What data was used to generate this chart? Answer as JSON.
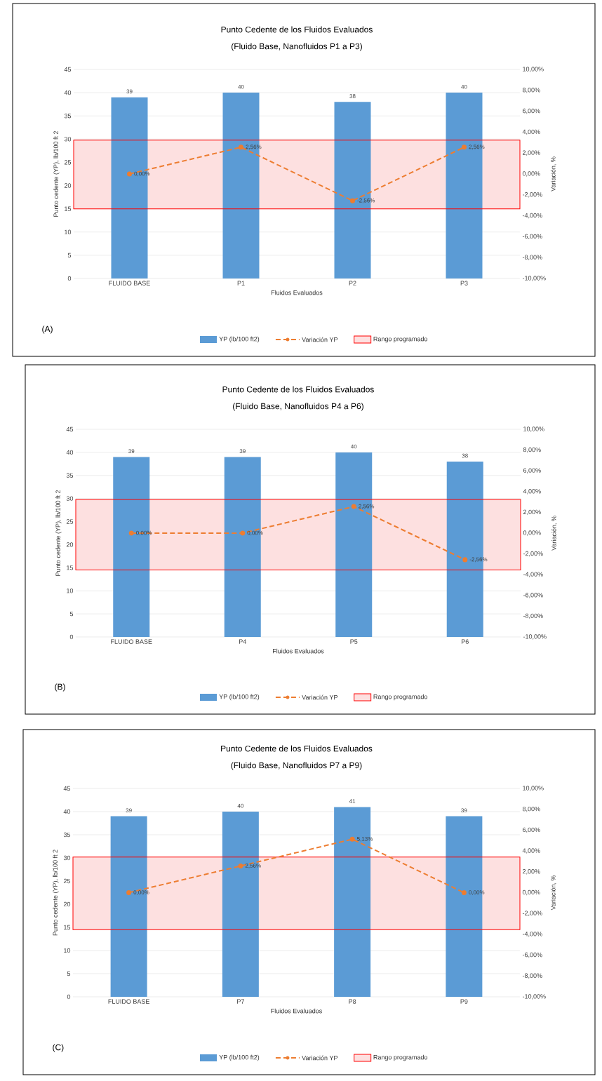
{
  "chart_data": [
    {
      "type": "bar",
      "title": "Punto Cedente de los Fluidos Evaluados",
      "subtitle": "(Fluido Base, Nanofluidos P1 a P3)",
      "xlabel": "Fluidos Evaluados",
      "ylabel": "Punto cedente (YP), lb/100 ft 2",
      "y2label": "Variación, %",
      "categories": [
        "FLUIDO BASE",
        "P1",
        "P2",
        "P3"
      ],
      "series": [
        {
          "name": "YP (lb/100 ft2)",
          "color": "#5b9bd5",
          "values": [
            39,
            40,
            38,
            40
          ],
          "value_labels": [
            "39",
            "40",
            "38",
            "40"
          ]
        },
        {
          "name": "Variación YP",
          "type": "line",
          "axis": "y2",
          "color": "#ed7d31",
          "marker": "circle",
          "line_style": "dashed",
          "values": [
            0,
            2.56,
            -2.56,
            2.56
          ],
          "value_labels": [
            "0,00%",
            "2,56%",
            "-2,56%",
            "2,56%"
          ]
        }
      ],
      "bands": [
        {
          "axis": "y",
          "from": 15,
          "to": 29.8,
          "label": "Rango programado",
          "color": "#fde0e0"
        }
      ],
      "ylim": [
        0,
        45
      ],
      "yticks": [
        0,
        5,
        10,
        15,
        20,
        25,
        30,
        35,
        40,
        45
      ],
      "y2lim": [
        -10,
        10
      ],
      "y2ticks": [
        {
          "value": -10,
          "label": "-10,00%"
        },
        {
          "value": -8,
          "label": "-8,00%"
        },
        {
          "value": -6,
          "label": "-6,00%"
        },
        {
          "value": -4,
          "label": "-4,00%"
        },
        {
          "value": -2,
          "label": "-2,00%"
        },
        {
          "value": 0,
          "label": "0,00%"
        },
        {
          "value": 2,
          "label": "2,00%"
        },
        {
          "value": 4,
          "label": "4,00%"
        },
        {
          "value": 6,
          "label": "6,00%"
        },
        {
          "value": 8,
          "label": "8,00%"
        },
        {
          "value": 10,
          "label": "10,00%"
        }
      ],
      "grid": "y",
      "legend": "bottom",
      "annotations": [
        "(A)"
      ]
    },
    {
      "type": "bar",
      "title": "Punto Cedente de los Fluidos Evaluados",
      "subtitle": "(Fluido Base, Nanofluidos P4 a P6)",
      "xlabel": "Fluidos Evaluados",
      "ylabel": "Punto cedente (YP), lb/100 ft 2",
      "y2label": "Variación, %",
      "categories": [
        "FLUIDO BASE",
        "P4",
        "P5",
        "P6"
      ],
      "series": [
        {
          "name": "YP (lb/100 ft2)",
          "color": "#5b9bd5",
          "values": [
            39,
            39,
            40,
            38
          ],
          "value_labels": [
            "39",
            "39",
            "40",
            "38"
          ]
        },
        {
          "name": "Variación YP",
          "type": "line",
          "axis": "y2",
          "color": "#ed7d31",
          "marker": "circle",
          "line_style": "dashed",
          "values": [
            0,
            0,
            2.56,
            -2.56
          ],
          "value_labels": [
            "0,00%",
            "0,00%",
            "2,56%",
            "-2,56%"
          ]
        }
      ],
      "bands": [
        {
          "axis": "y",
          "from": 14.5,
          "to": 29.8,
          "label": "Rango programado",
          "color": "#fde0e0"
        }
      ],
      "ylim": [
        0,
        45
      ],
      "yticks": [
        0,
        5,
        10,
        15,
        20,
        25,
        30,
        35,
        40,
        45
      ],
      "y2lim": [
        -10,
        10
      ],
      "y2ticks": [
        {
          "value": -10,
          "label": "-10,00%"
        },
        {
          "value": -8,
          "label": "-8,00%"
        },
        {
          "value": -6,
          "label": "-6,00%"
        },
        {
          "value": -4,
          "label": "-4,00%"
        },
        {
          "value": -2,
          "label": "-2,00%"
        },
        {
          "value": 0,
          "label": "0,00%"
        },
        {
          "value": 2,
          "label": "2,00%"
        },
        {
          "value": 4,
          "label": "4,00%"
        },
        {
          "value": 6,
          "label": "6,00%"
        },
        {
          "value": 8,
          "label": "8,00%"
        },
        {
          "value": 10,
          "label": "10,00%"
        }
      ],
      "grid": "y",
      "legend": "bottom",
      "annotations": [
        "(B)"
      ]
    },
    {
      "type": "bar",
      "title": "Punto Cedente de los Fluidos Evaluados",
      "subtitle": "(Fluido Base, Nanofluidos P7 a P9)",
      "xlabel": "Fluidos Evaluados",
      "ylabel": "Punto cedente (YP), lb/100 ft 2",
      "y2label": "Variación, %",
      "categories": [
        "FLUIDO BASE",
        "P7",
        "P8",
        "P9"
      ],
      "series": [
        {
          "name": "YP (lb/100 ft2)",
          "color": "#5b9bd5",
          "values": [
            39,
            40,
            41,
            39
          ],
          "value_labels": [
            "39",
            "40",
            "41",
            "39"
          ]
        },
        {
          "name": "Variación YP",
          "type": "line",
          "axis": "y2",
          "color": "#ed7d31",
          "marker": "circle",
          "line_style": "dashed",
          "values": [
            0,
            2.56,
            5.13,
            0
          ],
          "value_labels": [
            "0,00%",
            "2,56%",
            "5,13%",
            "0,00%"
          ]
        }
      ],
      "bands": [
        {
          "axis": "y",
          "from": 14.5,
          "to": 30.2,
          "label": "Rango programado",
          "color": "#fde0e0"
        }
      ],
      "ylim": [
        0,
        45
      ],
      "yticks": [
        0,
        5,
        10,
        15,
        20,
        25,
        30,
        35,
        40,
        45
      ],
      "y2lim": [
        -10,
        10
      ],
      "y2ticks": [
        {
          "value": -10,
          "label": "-10,00%"
        },
        {
          "value": -8,
          "label": "-8,00%"
        },
        {
          "value": -6,
          "label": "-6,00%"
        },
        {
          "value": -4,
          "label": "-4,00%"
        },
        {
          "value": -2,
          "label": "-2,00%"
        },
        {
          "value": 0,
          "label": "0,00%"
        },
        {
          "value": 2,
          "label": "2,00%"
        },
        {
          "value": 4,
          "label": "4,00%"
        },
        {
          "value": 6,
          "label": "6,00%"
        },
        {
          "value": 8,
          "label": "8,00%"
        },
        {
          "value": 10,
          "label": "10,00%"
        }
      ],
      "grid": "y",
      "legend": "bottom",
      "annotations": [
        "(C)"
      ]
    }
  ]
}
